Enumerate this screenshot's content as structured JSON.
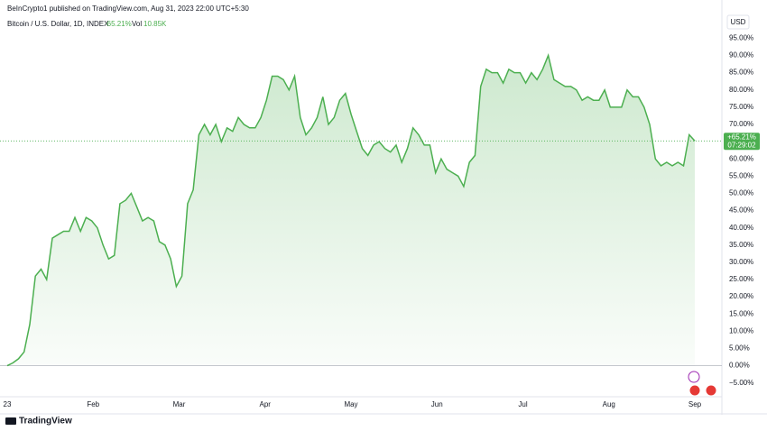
{
  "header": {
    "published": "BeInCrypto1 published on TradingView.com, Aug 31, 2023 22:00 UTC+5:30",
    "symbol": "Bitcoin / U.S. Dollar, 1D, INDEX",
    "change": "·65.21%",
    "volume_label": "Vol",
    "volume": "10.85K"
  },
  "chart_data": {
    "type": "area",
    "currency": "USD",
    "x_labels": [
      "23",
      "Feb",
      "Mar",
      "Apr",
      "May",
      "Jun",
      "Jul",
      "Aug",
      "Sep"
    ],
    "series": [
      {
        "name": "Bitcoin / U.S. Dollar",
        "color": "#4caf50",
        "values": [
          0,
          0.8,
          2,
          4,
          12,
          26,
          28,
          25,
          37,
          38,
          39,
          39,
          43,
          39,
          43,
          42,
          40,
          35,
          31,
          32,
          47,
          48,
          50,
          46,
          42,
          43,
          42,
          36,
          35,
          31,
          23,
          26,
          47,
          51,
          67,
          70,
          67,
          70,
          65,
          69,
          68,
          72,
          70,
          69,
          69,
          72,
          77,
          84,
          84,
          83,
          80,
          84,
          72,
          67,
          69,
          72,
          78,
          70,
          72,
          77,
          79,
          73,
          68,
          63,
          61,
          64,
          65,
          63,
          62,
          64,
          59,
          63,
          69,
          67,
          64,
          64,
          56,
          60,
          57,
          56,
          55,
          52,
          59,
          61,
          81,
          86,
          85,
          85,
          82,
          86,
          85,
          85,
          82,
          85,
          83,
          86,
          90,
          83,
          82,
          81,
          81,
          80,
          77,
          78,
          77,
          77,
          80,
          75,
          75,
          75,
          80,
          78,
          78,
          75,
          70,
          60,
          58,
          59,
          58,
          59,
          58,
          67,
          65.21
        ]
      }
    ],
    "last_label": "+65.21%",
    "last_time": "07:29:02",
    "ylim": [
      -9,
      104
    ],
    "yticks": [
      {
        "value": -5,
        "label": "−5.00%"
      },
      {
        "value": 0,
        "label": "0.00%"
      },
      {
        "value": 5,
        "label": "5.00%"
      },
      {
        "value": 10,
        "label": "10.00%"
      },
      {
        "value": 15,
        "label": "15.00%"
      },
      {
        "value": 20,
        "label": "20.00%"
      },
      {
        "value": 25,
        "label": "25.00%"
      },
      {
        "value": 30,
        "label": "30.00%"
      },
      {
        "value": 35,
        "label": "35.00%"
      },
      {
        "value": 40,
        "label": "40.00%"
      },
      {
        "value": 45,
        "label": "45.00%"
      },
      {
        "value": 50,
        "label": "50.00%"
      },
      {
        "value": 55,
        "label": "55.00%"
      },
      {
        "value": 60,
        "label": "60.00%"
      },
      {
        "value": 65,
        "label": "65.00%"
      },
      {
        "value": 70,
        "label": "70.00%"
      },
      {
        "value": 75,
        "label": "75.00%"
      },
      {
        "value": 80,
        "label": "80.00%"
      },
      {
        "value": 85,
        "label": "85.00%"
      },
      {
        "value": 90,
        "label": "90.00%"
      },
      {
        "value": 95,
        "label": "95.00%"
      }
    ],
    "grid": false
  },
  "footer": {
    "brand": "TradingView"
  }
}
